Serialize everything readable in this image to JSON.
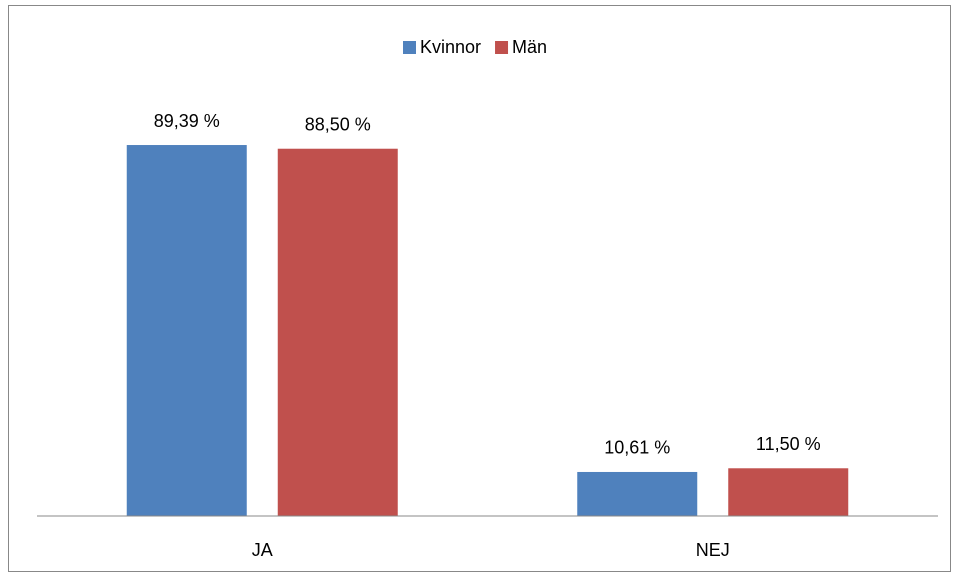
{
  "chart_data": {
    "type": "bar",
    "categories": [
      "JA",
      "NEJ"
    ],
    "series": [
      {
        "name": "Kvinnor",
        "color": "#4f81bd",
        "values": [
          89.39,
          10.61
        ],
        "value_labels": [
          "89,39 %",
          "10,61 %"
        ]
      },
      {
        "name": "Män",
        "color": "#c0504d",
        "values": [
          88.5,
          11.5
        ],
        "value_labels": [
          "88,50 %",
          "11,50 %"
        ]
      }
    ],
    "ylim": [
      0,
      100
    ],
    "legend": "top"
  }
}
